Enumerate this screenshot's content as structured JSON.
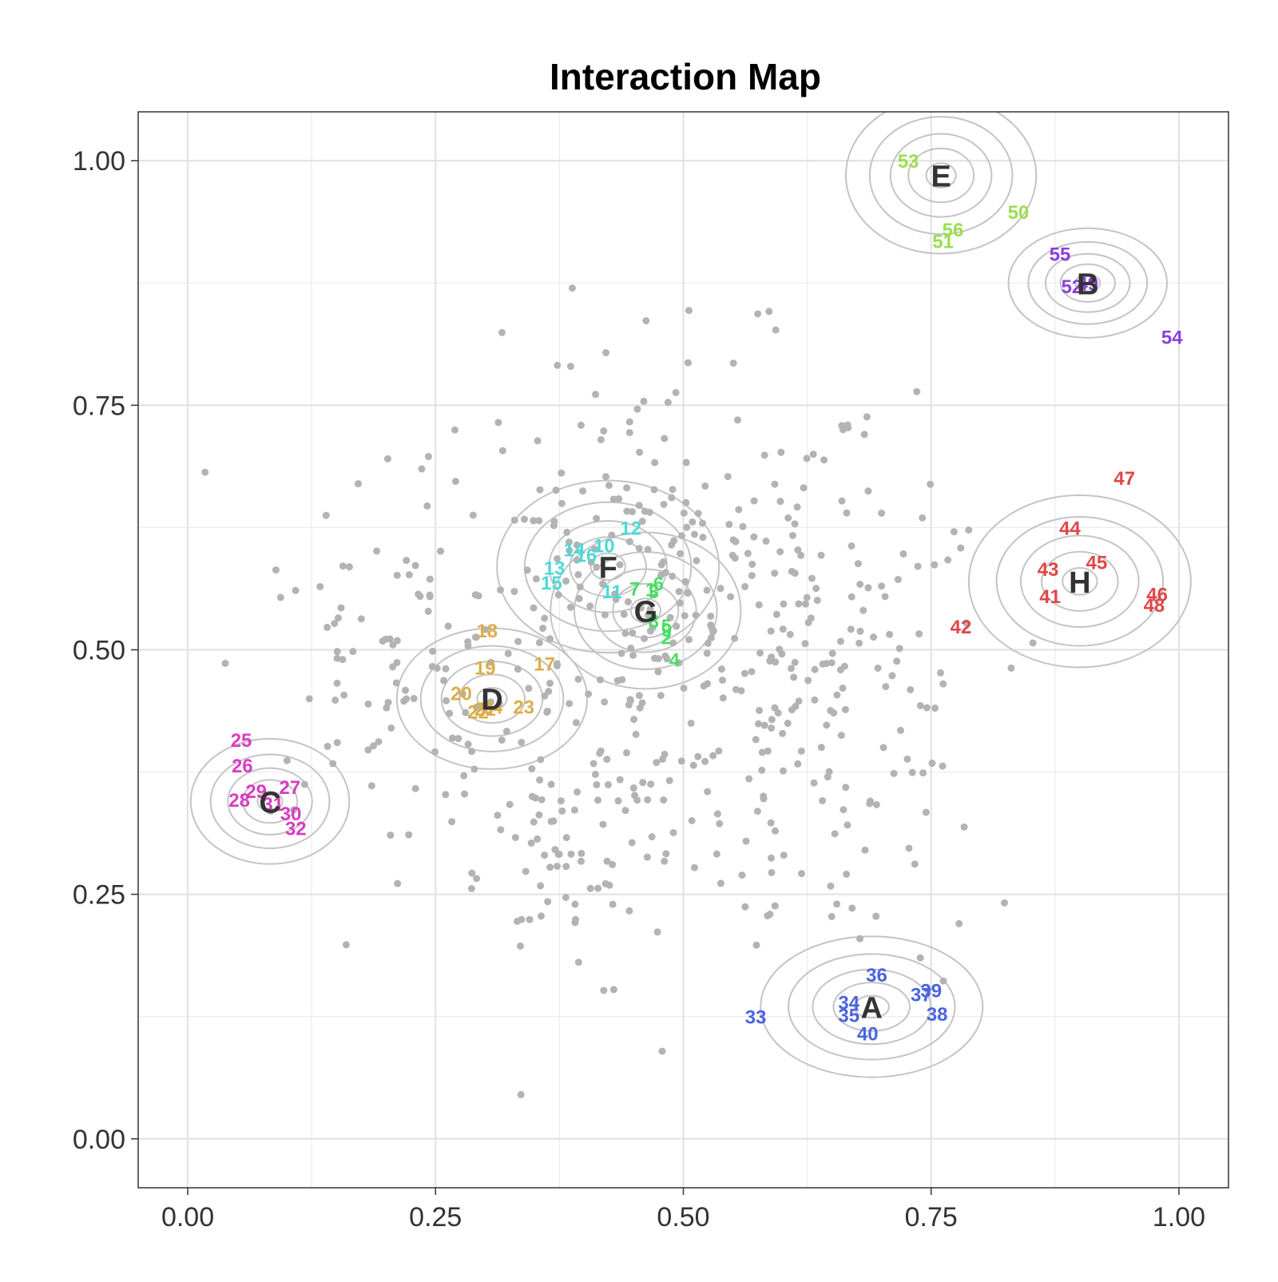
{
  "chart_data": {
    "type": "scatter",
    "title": "Interaction Map",
    "xlabel": "",
    "ylabel": "",
    "xlim": [
      -0.05,
      1.05
    ],
    "ylim": [
      -0.05,
      1.05
    ],
    "x_ticks": [
      "0.00",
      "0.25",
      "0.50",
      "0.75",
      "1.00"
    ],
    "y_ticks": [
      "0.00",
      "0.25",
      "0.50",
      "0.75",
      "1.00"
    ],
    "x_tick_values": [
      0,
      0.25,
      0.5,
      0.75,
      1.0
    ],
    "y_tick_values": [
      0,
      0.25,
      0.5,
      0.75,
      1.0
    ],
    "grid": true,
    "legend": "none",
    "background_point_color": "#b3b3b3",
    "contour_color": "#c4c4c4",
    "clusters": [
      {
        "label": "A",
        "x": 0.69,
        "y": 0.135,
        "color": "#4a63e0",
        "sx": 0.07,
        "sy": 0.045,
        "points": [
          {
            "label": "33",
            "x": 0.573,
            "y": 0.125
          },
          {
            "label": "34",
            "x": 0.667,
            "y": 0.14
          },
          {
            "label": "35",
            "x": 0.667,
            "y": 0.127
          },
          {
            "label": "36",
            "x": 0.695,
            "y": 0.168
          },
          {
            "label": "37",
            "x": 0.74,
            "y": 0.148
          },
          {
            "label": "38",
            "x": 0.756,
            "y": 0.128
          },
          {
            "label": "39",
            "x": 0.75,
            "y": 0.152
          },
          {
            "label": "40",
            "x": 0.686,
            "y": 0.108
          }
        ]
      },
      {
        "label": "B",
        "x": 0.908,
        "y": 0.875,
        "color": "#8c3fe0",
        "sx": 0.05,
        "sy": 0.035,
        "points": [
          {
            "label": "49",
            "x": 0.908,
            "y": 0.875
          },
          {
            "label": "52",
            "x": 0.892,
            "y": 0.872
          },
          {
            "label": "54",
            "x": 0.993,
            "y": 0.82
          },
          {
            "label": "55",
            "x": 0.88,
            "y": 0.905
          }
        ]
      },
      {
        "label": "C",
        "x": 0.083,
        "y": 0.345,
        "color": "#d83dc0",
        "sx": 0.05,
        "sy": 0.04,
        "points": [
          {
            "label": "25",
            "x": 0.054,
            "y": 0.408
          },
          {
            "label": "26",
            "x": 0.055,
            "y": 0.382
          },
          {
            "label": "27",
            "x": 0.103,
            "y": 0.36
          },
          {
            "label": "28",
            "x": 0.052,
            "y": 0.347
          },
          {
            "label": "29",
            "x": 0.069,
            "y": 0.356
          },
          {
            "label": "30",
            "x": 0.104,
            "y": 0.333
          },
          {
            "label": "31",
            "x": 0.086,
            "y": 0.343
          },
          {
            "label": "32",
            "x": 0.109,
            "y": 0.318
          }
        ]
      },
      {
        "label": "D",
        "x": 0.307,
        "y": 0.45,
        "color": "#dcae4a",
        "sx": 0.06,
        "sy": 0.045,
        "points": [
          {
            "label": "17",
            "x": 0.36,
            "y": 0.486
          },
          {
            "label": "18",
            "x": 0.302,
            "y": 0.52
          },
          {
            "label": "19",
            "x": 0.3,
            "y": 0.482
          },
          {
            "label": "20",
            "x": 0.276,
            "y": 0.456
          },
          {
            "label": "21",
            "x": 0.3,
            "y": 0.44
          },
          {
            "label": "22",
            "x": 0.293,
            "y": 0.437
          },
          {
            "label": "23",
            "x": 0.339,
            "y": 0.442
          },
          {
            "label": "24",
            "x": 0.307,
            "y": 0.442
          }
        ]
      },
      {
        "label": "E",
        "x": 0.76,
        "y": 0.985,
        "color": "#9ade50",
        "sx": 0.06,
        "sy": 0.05,
        "points": [
          {
            "label": "50",
            "x": 0.838,
            "y": 0.948
          },
          {
            "label": "51",
            "x": 0.762,
            "y": 0.918
          },
          {
            "label": "53",
            "x": 0.727,
            "y": 1.0
          },
          {
            "label": "56",
            "x": 0.772,
            "y": 0.93
          }
        ]
      },
      {
        "label": "F",
        "x": 0.424,
        "y": 0.585,
        "color": "#4fd8d8",
        "sx": 0.07,
        "sy": 0.055,
        "points": [
          {
            "label": "10",
            "x": 0.42,
            "y": 0.607
          },
          {
            "label": "11",
            "x": 0.428,
            "y": 0.56
          },
          {
            "label": "12",
            "x": 0.447,
            "y": 0.625
          },
          {
            "label": "13",
            "x": 0.37,
            "y": 0.584
          },
          {
            "label": "14",
            "x": 0.39,
            "y": 0.603
          },
          {
            "label": "15",
            "x": 0.367,
            "y": 0.569
          },
          {
            "label": "16",
            "x": 0.402,
            "y": 0.597
          }
        ]
      },
      {
        "label": "G",
        "x": 0.462,
        "y": 0.54,
        "color": "#4ade66",
        "sx": 0.06,
        "sy": 0.05,
        "points": [
          {
            "label": "1",
            "x": 0.467,
            "y": 0.562
          },
          {
            "label": "2",
            "x": 0.483,
            "y": 0.513
          },
          {
            "label": "3",
            "x": 0.47,
            "y": 0.56
          },
          {
            "label": "4",
            "x": 0.491,
            "y": 0.49
          },
          {
            "label": "5",
            "x": 0.483,
            "y": 0.525
          },
          {
            "label": "6",
            "x": 0.475,
            "y": 0.568
          },
          {
            "label": "7",
            "x": 0.451,
            "y": 0.563
          },
          {
            "label": "8",
            "x": 0.47,
            "y": 0.53
          },
          {
            "label": "9",
            "x": 0.483,
            "y": 0.521
          }
        ]
      },
      {
        "label": "H",
        "x": 0.9,
        "y": 0.57,
        "color": "#e04646",
        "sx": 0.07,
        "sy": 0.055,
        "points": [
          {
            "label": "41",
            "x": 0.87,
            "y": 0.555
          },
          {
            "label": "42",
            "x": 0.78,
            "y": 0.524
          },
          {
            "label": "43",
            "x": 0.868,
            "y": 0.583
          },
          {
            "label": "44",
            "x": 0.89,
            "y": 0.625
          },
          {
            "label": "45",
            "x": 0.917,
            "y": 0.59
          },
          {
            "label": "46",
            "x": 0.978,
            "y": 0.557
          },
          {
            "label": "47",
            "x": 0.945,
            "y": 0.676
          },
          {
            "label": "48",
            "x": 0.975,
            "y": 0.546
          }
        ]
      }
    ]
  }
}
